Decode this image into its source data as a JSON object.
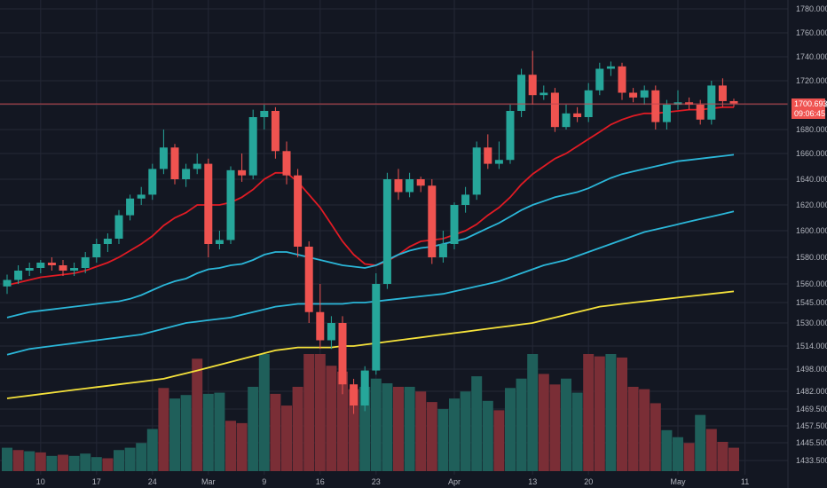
{
  "chart_data": {
    "type": "candlestick",
    "title": "",
    "price_axis_ticks": [
      1780,
      1760,
      1740,
      1720,
      1700,
      1680,
      1660,
      1640,
      1620,
      1600,
      1580,
      1560,
      1545,
      1530,
      1514,
      1498,
      1482,
      1469.5,
      1457.5,
      1445.5,
      1433.5
    ],
    "price_tick_labels": [
      "1780.000",
      "1760.000",
      "1740.000",
      "1720.000",
      "1700.000",
      "1680.000",
      "1660.000",
      "1640.000",
      "1620.000",
      "1600.000",
      "1580.000",
      "1560.000",
      "1545.000",
      "1530.000",
      "1514.000",
      "1498.000",
      "1482.000",
      "1469.500",
      "1457.500",
      "1445.500",
      "1433.500"
    ],
    "time_axis_labels": [
      {
        "index": 3,
        "label": "10"
      },
      {
        "index": 8,
        "label": "17"
      },
      {
        "index": 13,
        "label": "24"
      },
      {
        "index": 18,
        "label": "Mar"
      },
      {
        "index": 23,
        "label": "9"
      },
      {
        "index": 28,
        "label": "16"
      },
      {
        "index": 33,
        "label": "23"
      },
      {
        "index": 40,
        "label": "Apr"
      },
      {
        "index": 47,
        "label": "13"
      },
      {
        "index": 52,
        "label": "20"
      },
      {
        "index": 60,
        "label": "May"
      },
      {
        "index": 66,
        "label": "11"
      }
    ],
    "current_price": {
      "label": "1700.693",
      "countdown": "09:06:45",
      "value": 1700.693
    },
    "candles": [
      [
        1558,
        1563,
        1552,
        1567
      ],
      [
        1563,
        1570,
        1560,
        1574
      ],
      [
        1570,
        1572,
        1566,
        1576
      ],
      [
        1572,
        1576,
        1568,
        1578
      ],
      [
        1576,
        1574,
        1570,
        1580
      ],
      [
        1574,
        1570,
        1566,
        1578
      ],
      [
        1570,
        1572,
        1566,
        1576
      ],
      [
        1572,
        1580,
        1568,
        1584
      ],
      [
        1580,
        1590,
        1576,
        1594
      ],
      [
        1590,
        1594,
        1584,
        1598
      ],
      [
        1594,
        1612,
        1590,
        1616
      ],
      [
        1612,
        1625,
        1608,
        1628
      ],
      [
        1625,
        1628,
        1620,
        1634
      ],
      [
        1628,
        1648,
        1624,
        1652
      ],
      [
        1648,
        1665,
        1644,
        1680
      ],
      [
        1665,
        1640,
        1636,
        1668
      ],
      [
        1640,
        1648,
        1634,
        1652
      ],
      [
        1648,
        1652,
        1644,
        1660
      ],
      [
        1652,
        1590,
        1580,
        1656
      ],
      [
        1590,
        1593,
        1586,
        1600
      ],
      [
        1593,
        1647,
        1590,
        1650
      ],
      [
        1647,
        1643,
        1638,
        1660
      ],
      [
        1643,
        1690,
        1640,
        1696
      ],
      [
        1690,
        1695,
        1680,
        1700
      ],
      [
        1695,
        1662,
        1656,
        1698
      ],
      [
        1662,
        1643,
        1636,
        1670
      ],
      [
        1643,
        1588,
        1580,
        1648
      ],
      [
        1588,
        1538,
        1530,
        1592
      ],
      [
        1538,
        1518,
        1512,
        1560
      ],
      [
        1518,
        1530,
        1512,
        1535
      ],
      [
        1530,
        1487,
        1480,
        1535
      ],
      [
        1487,
        1472,
        1466,
        1491
      ],
      [
        1472,
        1497,
        1468,
        1500
      ],
      [
        1497,
        1560,
        1494,
        1568
      ],
      [
        1560,
        1640,
        1556,
        1645
      ],
      [
        1640,
        1630,
        1624,
        1648
      ],
      [
        1630,
        1640,
        1626,
        1645
      ],
      [
        1640,
        1635,
        1630,
        1642
      ],
      [
        1635,
        1580,
        1575,
        1640
      ],
      [
        1580,
        1590,
        1576,
        1600
      ],
      [
        1590,
        1620,
        1586,
        1622
      ],
      [
        1620,
        1628,
        1614,
        1634
      ],
      [
        1628,
        1665,
        1624,
        1670
      ],
      [
        1665,
        1652,
        1648,
        1676
      ],
      [
        1652,
        1655,
        1648,
        1670
      ],
      [
        1655,
        1695,
        1652,
        1700
      ],
      [
        1695,
        1725,
        1690,
        1730
      ],
      [
        1725,
        1708,
        1700,
        1745
      ],
      [
        1708,
        1710,
        1704,
        1716
      ],
      [
        1710,
        1682,
        1678,
        1714
      ],
      [
        1682,
        1693,
        1680,
        1700
      ],
      [
        1693,
        1690,
        1686,
        1698
      ],
      [
        1690,
        1712,
        1686,
        1718
      ],
      [
        1712,
        1730,
        1708,
        1735
      ],
      [
        1730,
        1732,
        1724,
        1736
      ],
      [
        1732,
        1710,
        1704,
        1735
      ],
      [
        1710,
        1706,
        1702,
        1714
      ],
      [
        1706,
        1712,
        1700,
        1716
      ],
      [
        1712,
        1686,
        1680,
        1716
      ],
      [
        1686,
        1700,
        1680,
        1704
      ],
      [
        1700,
        1702,
        1696,
        1712
      ],
      [
        1702,
        1700,
        1696,
        1706
      ],
      [
        1700,
        1688,
        1684,
        1704
      ],
      [
        1688,
        1716,
        1684,
        1720
      ],
      [
        1716,
        1703,
        1698,
        1722
      ],
      [
        1703,
        1701,
        1698,
        1705
      ]
    ],
    "volume_bars": [
      [
        1,
        0.2
      ],
      [
        0,
        0.18
      ],
      [
        1,
        0.17
      ],
      [
        0,
        0.16
      ],
      [
        1,
        0.13
      ],
      [
        0,
        0.14
      ],
      [
        1,
        0.13
      ],
      [
        1,
        0.15
      ],
      [
        1,
        0.12
      ],
      [
        0,
        0.11
      ],
      [
        1,
        0.18
      ],
      [
        1,
        0.2
      ],
      [
        1,
        0.24
      ],
      [
        1,
        0.36
      ],
      [
        0,
        0.71
      ],
      [
        1,
        0.62
      ],
      [
        1,
        0.65
      ],
      [
        0,
        0.96
      ],
      [
        1,
        0.66
      ],
      [
        1,
        0.67
      ],
      [
        0,
        0.43
      ],
      [
        0,
        0.41
      ],
      [
        1,
        0.72
      ],
      [
        1,
        1.0
      ],
      [
        0,
        0.66
      ],
      [
        0,
        0.56
      ],
      [
        0,
        0.72
      ],
      [
        0,
        1.0
      ],
      [
        0,
        1.0
      ],
      [
        0,
        0.9
      ],
      [
        0,
        0.85
      ],
      [
        0,
        0.7
      ],
      [
        1,
        0.72
      ],
      [
        1,
        0.79
      ],
      [
        1,
        0.75
      ],
      [
        0,
        0.72
      ],
      [
        1,
        0.72
      ],
      [
        0,
        0.68
      ],
      [
        0,
        0.59
      ],
      [
        1,
        0.53
      ],
      [
        1,
        0.62
      ],
      [
        1,
        0.68
      ],
      [
        1,
        0.81
      ],
      [
        1,
        0.6
      ],
      [
        0,
        0.52
      ],
      [
        1,
        0.71
      ],
      [
        1,
        0.79
      ],
      [
        1,
        1.0
      ],
      [
        0,
        0.83
      ],
      [
        0,
        0.74
      ],
      [
        1,
        0.79
      ],
      [
        1,
        0.67
      ],
      [
        0,
        1.0
      ],
      [
        0,
        0.98
      ],
      [
        1,
        1.0
      ],
      [
        0,
        0.97
      ],
      [
        0,
        0.72
      ],
      [
        0,
        0.7
      ],
      [
        0,
        0.58
      ],
      [
        1,
        0.35
      ],
      [
        1,
        0.29
      ],
      [
        0,
        0.24
      ],
      [
        1,
        0.48
      ],
      [
        0,
        0.36
      ],
      [
        0,
        0.25
      ],
      [
        0,
        0.2
      ]
    ],
    "moving_averages": [
      {
        "color": "#e01b24",
        "start": 1559,
        "values": [
          1559,
          1561,
          1563,
          1565,
          1566,
          1567,
          1568,
          1570,
          1573,
          1576,
          1580,
          1585,
          1590,
          1596,
          1604,
          1610,
          1614,
          1620,
          1620,
          1620,
          1622,
          1626,
          1632,
          1640,
          1645,
          1645,
          1638,
          1628,
          1618,
          1605,
          1592,
          1582,
          1575,
          1574,
          1577,
          1582,
          1588,
          1592,
          1593,
          1594,
          1597,
          1600,
          1605,
          1612,
          1618,
          1626,
          1636,
          1644,
          1650,
          1656,
          1660,
          1666,
          1672,
          1678,
          1684,
          1688,
          1691,
          1693,
          1693,
          1694,
          1695,
          1696,
          1696,
          1697,
          1698,
          1698
        ]
      },
      {
        "color": "#2bb6d8",
        "start": 1534,
        "values": [
          1534,
          1536,
          1538,
          1539,
          1540,
          1541,
          1542,
          1543,
          1544,
          1545,
          1546,
          1548,
          1551,
          1555,
          1559,
          1562,
          1564,
          1568,
          1571,
          1572,
          1574,
          1575,
          1578,
          1582,
          1584,
          1584,
          1582,
          1580,
          1578,
          1576,
          1574,
          1573,
          1572,
          1574,
          1578,
          1582,
          1585,
          1587,
          1588,
          1590,
          1592,
          1594,
          1598,
          1602,
          1606,
          1611,
          1616,
          1620,
          1623,
          1626,
          1628,
          1630,
          1633,
          1637,
          1641,
          1644,
          1646,
          1648,
          1650,
          1652,
          1654,
          1655,
          1656,
          1657,
          1658,
          1659
        ]
      },
      {
        "color": "#2bb6d8",
        "start": 1508,
        "values": [
          1508,
          1510,
          1512,
          1513,
          1514,
          1515,
          1516,
          1517,
          1518,
          1519,
          1520,
          1521,
          1522,
          1524,
          1526,
          1528,
          1530,
          1531,
          1532,
          1533,
          1534,
          1536,
          1538,
          1540,
          1542,
          1543,
          1544,
          1544,
          1544,
          1544,
          1544,
          1545,
          1545,
          1546,
          1547,
          1548,
          1549,
          1550,
          1551,
          1552,
          1554,
          1556,
          1558,
          1560,
          1562,
          1565,
          1568,
          1571,
          1574,
          1576,
          1578,
          1581,
          1584,
          1587,
          1590,
          1593,
          1596,
          1599,
          1601,
          1603,
          1605,
          1607,
          1609,
          1611,
          1613,
          1615
        ]
      },
      {
        "color": "#f5e23b",
        "start": 1477,
        "values": [
          1477,
          1478,
          1479,
          1480,
          1481,
          1482,
          1483,
          1484,
          1485,
          1486,
          1487,
          1488,
          1489,
          1490,
          1491,
          1493,
          1495,
          1497,
          1499,
          1501,
          1503,
          1505,
          1507,
          1509,
          1511,
          1512,
          1513,
          1513,
          1513,
          1513,
          1514,
          1514,
          1515,
          1516,
          1517,
          1518,
          1519,
          1520,
          1521,
          1522,
          1523,
          1524,
          1525,
          1526,
          1527,
          1528,
          1529,
          1530,
          1532,
          1534,
          1536,
          1538,
          1540,
          1542,
          1543,
          1544,
          1545,
          1546,
          1547,
          1548,
          1549,
          1550,
          1551,
          1552,
          1553,
          1554
        ]
      }
    ],
    "colors": {
      "background": "#131722",
      "grid": "#242836",
      "up": "#26a69a",
      "down": "#ef5350",
      "up_volume": "#1f5f5a",
      "down_volume": "#7a2e36",
      "price_line": "#c0474e",
      "axis_text": "#b2b5be"
    }
  }
}
